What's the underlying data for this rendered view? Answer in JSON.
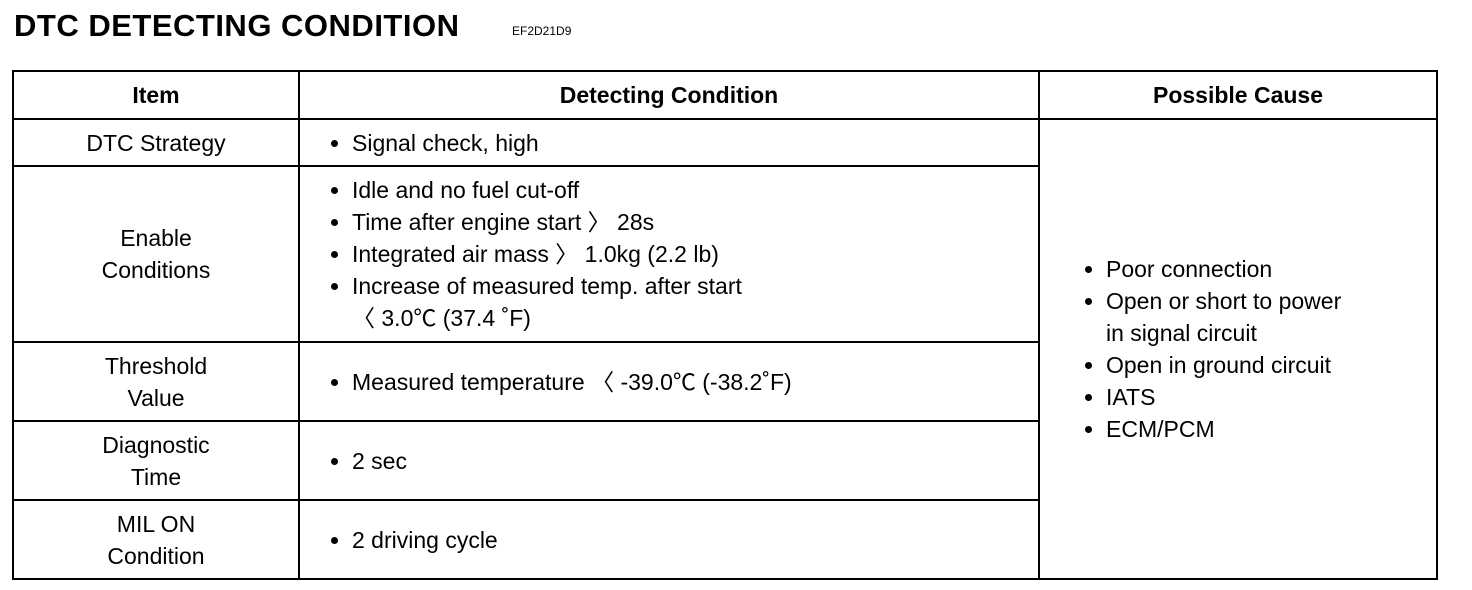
{
  "header": {
    "title": "DTC DETECTING CONDITION",
    "code": "EF2D21D9"
  },
  "table": {
    "columns": [
      "Item",
      "Detecting Condition",
      "Possible Cause"
    ],
    "rows": [
      {
        "item": [
          "DTC Strategy"
        ],
        "conditions": [
          [
            "Signal check, high"
          ]
        ]
      },
      {
        "item": [
          "Enable",
          "Conditions"
        ],
        "conditions": [
          [
            "Idle and no fuel cut-off"
          ],
          [
            "Time after engine start 〉 28s"
          ],
          [
            "Integrated air mass 〉 1.0kg (2.2 lb)"
          ],
          [
            "Increase of measured temp.  after start",
            "〈 3.0℃ (37.4 ˚F)"
          ]
        ]
      },
      {
        "item": [
          "Threshold",
          "Value"
        ],
        "conditions": [
          [
            "Measured temperature 〈 -39.0℃ (-38.2˚F)"
          ]
        ]
      },
      {
        "item": [
          "Diagnostic",
          "Time"
        ],
        "conditions": [
          [
            "2 sec"
          ]
        ]
      },
      {
        "item": [
          "MIL ON",
          "Condition"
        ],
        "conditions": [
          [
            "2 driving cycle"
          ]
        ]
      }
    ],
    "cause": [
      [
        "Poor connection"
      ],
      [
        "Open or short to power",
        "in signal circuit"
      ],
      [
        "Open in ground circuit"
      ],
      [
        "IATS"
      ],
      [
        "ECM/PCM"
      ]
    ]
  }
}
